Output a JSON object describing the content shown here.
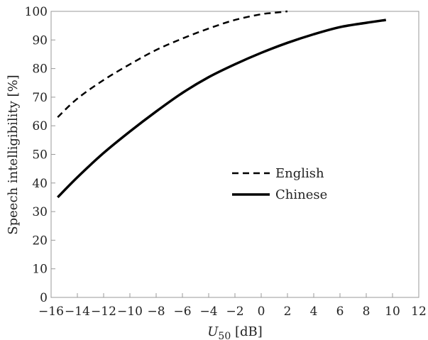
{
  "chart_data": {
    "type": "line",
    "xlabel_main": "U",
    "xlabel_sub": "50",
    "xlabel_unit": " [dB]",
    "ylabel": "Speech intelligibility [%]",
    "xlim": [
      -16,
      12
    ],
    "ylim": [
      0,
      100
    ],
    "xticks": [
      -16,
      -14,
      -12,
      -10,
      -8,
      -6,
      -4,
      -2,
      0,
      2,
      4,
      6,
      8,
      10,
      12
    ],
    "yticks": [
      0,
      10,
      20,
      30,
      40,
      50,
      60,
      70,
      80,
      90,
      100
    ],
    "grid": false,
    "legend_position": "center-right",
    "series": [
      {
        "name": "English",
        "style": "dashed",
        "color": "#000000",
        "x": [
          -15.5,
          -14,
          -12,
          -10,
          -8,
          -6,
          -4,
          -2,
          0,
          1,
          2
        ],
        "y": [
          63,
          69.5,
          76,
          81.5,
          86.5,
          90.5,
          94,
          97,
          99,
          99.5,
          100
        ]
      },
      {
        "name": "Chinese",
        "style": "solid",
        "color": "#000000",
        "x": [
          -15.5,
          -14,
          -12,
          -10,
          -8,
          -6,
          -4,
          -2,
          0,
          2,
          4,
          6,
          8,
          9.5
        ],
        "y": [
          35,
          42,
          50.5,
          58,
          65,
          71.5,
          77,
          81.5,
          85.5,
          89,
          92,
          94.5,
          96,
          97
        ]
      }
    ]
  }
}
